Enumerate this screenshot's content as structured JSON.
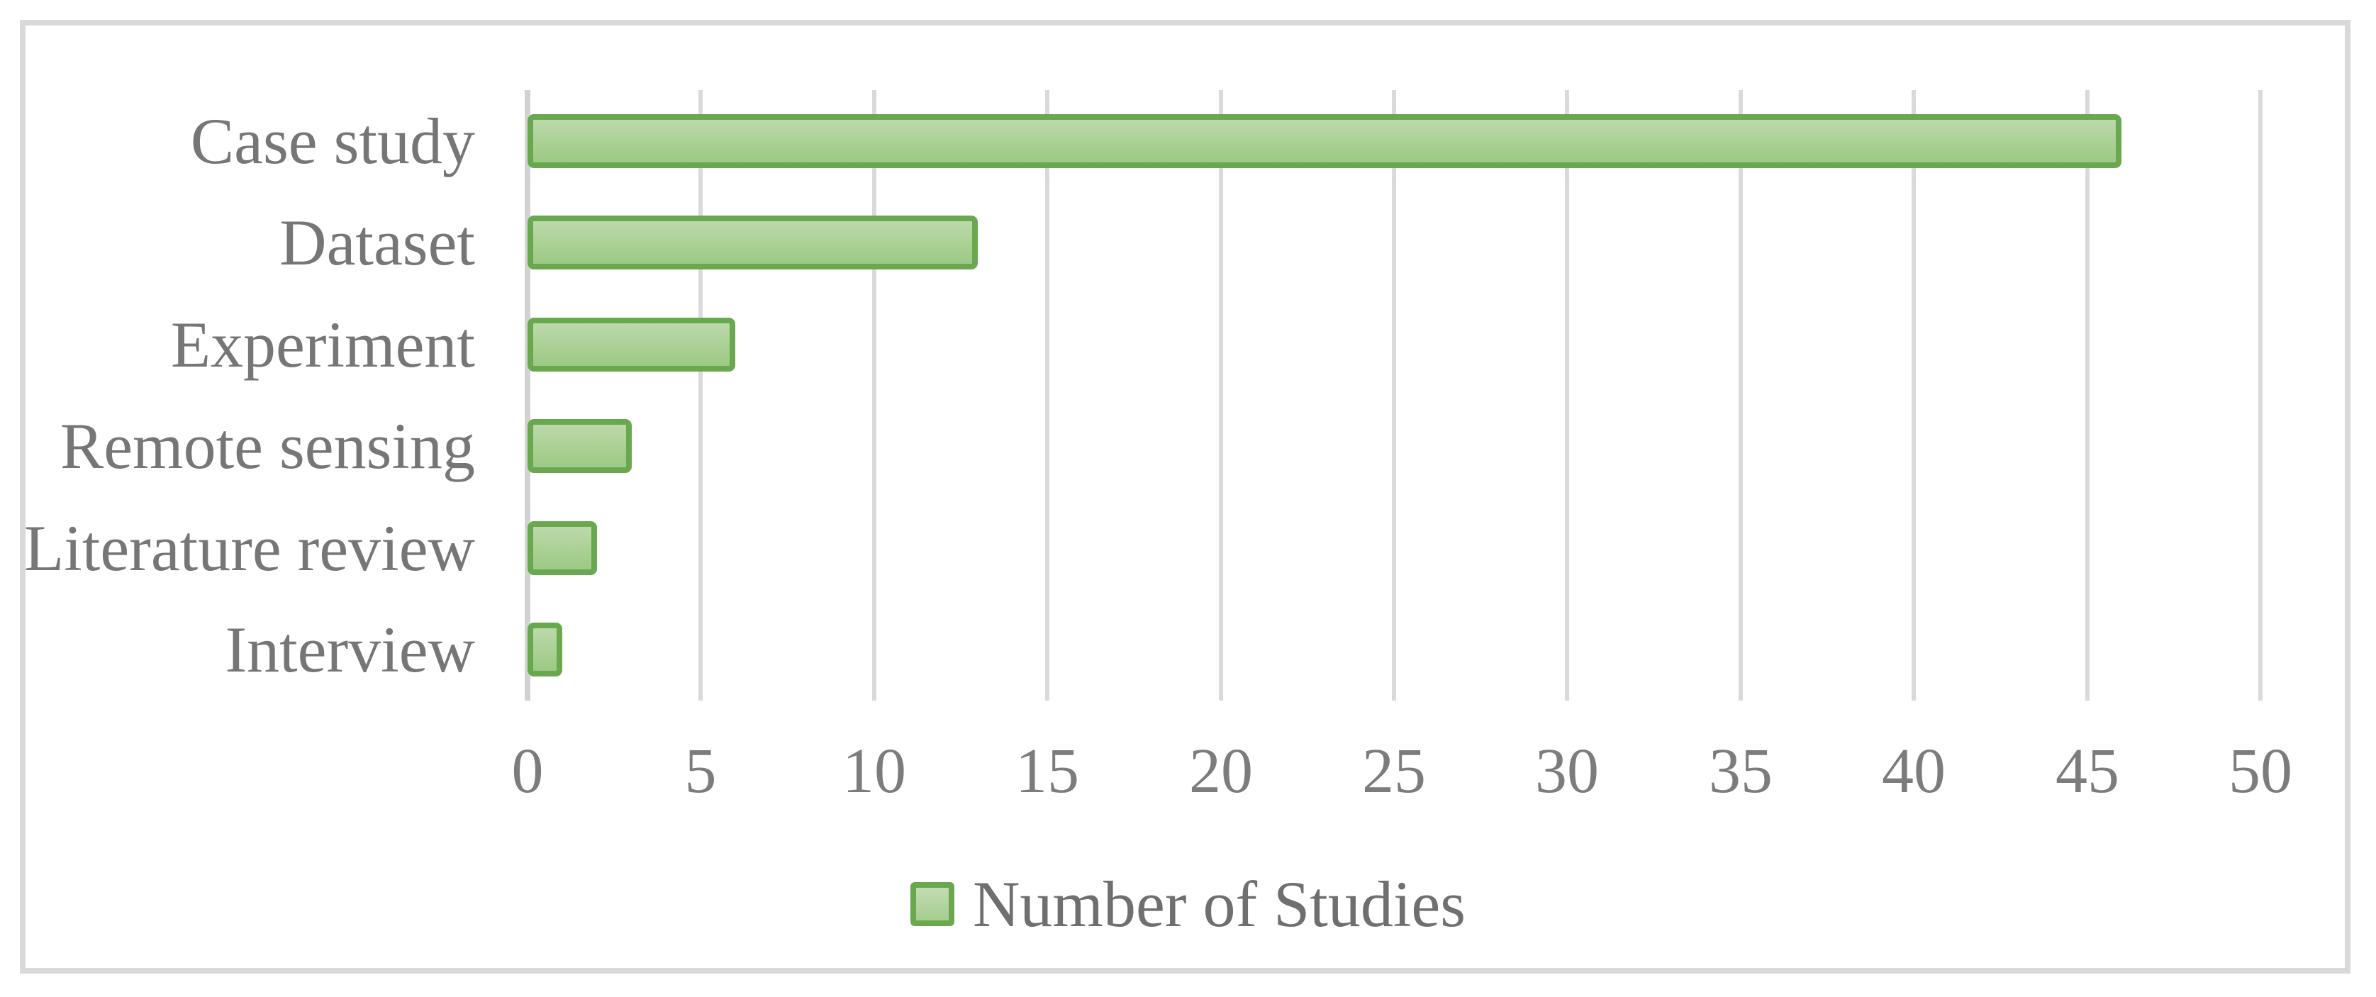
{
  "chart_data": {
    "type": "bar",
    "orientation": "horizontal",
    "title": "",
    "xlabel": "",
    "ylabel": "",
    "categories": [
      "Case study",
      "Dataset",
      "Experiment",
      "Remote sensing",
      "Literature review",
      "Interview"
    ],
    "values": [
      46,
      13,
      6,
      3,
      2,
      1
    ],
    "series_name": "Number of Studies",
    "x_ticks": [
      0,
      5,
      10,
      15,
      20,
      25,
      30,
      35,
      40,
      45,
      50
    ],
    "xlim": [
      0,
      50
    ],
    "grid": true,
    "legend_position": "bottom-center",
    "colors": {
      "bar_fill_top": "#bcd9ab",
      "bar_fill_bottom": "#9cc985",
      "bar_border": "#6aa84f",
      "gridline": "#dadada",
      "figure_border": "#d9d9d9",
      "label_text": "#767676",
      "tick_text": "#7c7c7c"
    }
  },
  "legend": {
    "label": "Number of Studies"
  }
}
